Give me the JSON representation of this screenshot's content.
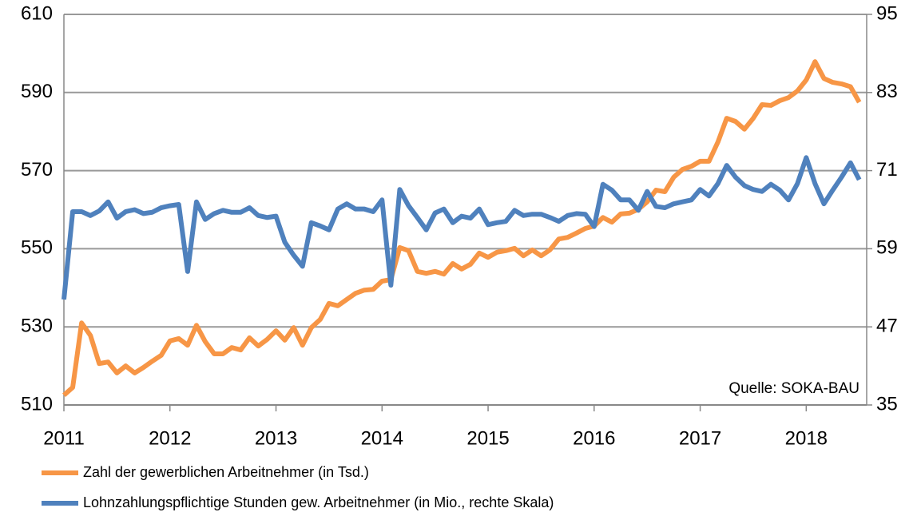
{
  "chart_data": {
    "type": "line",
    "x": [
      2011,
      2011.083,
      2011.167,
      2011.25,
      2011.333,
      2011.417,
      2011.5,
      2011.583,
      2011.667,
      2011.75,
      2011.833,
      2011.917,
      2012,
      2012.083,
      2012.167,
      2012.25,
      2012.333,
      2012.417,
      2012.5,
      2012.583,
      2012.667,
      2012.75,
      2012.833,
      2012.917,
      2013,
      2013.083,
      2013.167,
      2013.25,
      2013.333,
      2013.417,
      2013.5,
      2013.583,
      2013.667,
      2013.75,
      2013.833,
      2013.917,
      2014,
      2014.083,
      2014.167,
      2014.25,
      2014.333,
      2014.417,
      2014.5,
      2014.583,
      2014.667,
      2014.75,
      2014.833,
      2014.917,
      2015,
      2015.083,
      2015.167,
      2015.25,
      2015.333,
      2015.417,
      2015.5,
      2015.583,
      2015.667,
      2015.75,
      2015.833,
      2015.917,
      2016,
      2016.083,
      2016.167,
      2016.25,
      2016.333,
      2016.417,
      2016.5,
      2016.583,
      2016.667,
      2016.75,
      2016.833,
      2016.917,
      2017,
      2017.083,
      2017.167,
      2017.25,
      2017.333,
      2017.417,
      2017.5,
      2017.583,
      2017.667,
      2017.75,
      2017.833,
      2017.917,
      2018,
      2018.083,
      2018.167,
      2018.25,
      2018.333,
      2018.417,
      2018.5
    ],
    "series": [
      {
        "name": "Zahl der gewerblichen Arbeitnehmer (in Tsd.)",
        "color": "#f79646",
        "values": [
          512.5,
          514.5,
          531,
          527.8,
          520.6,
          521,
          518.2,
          520,
          518.2,
          519.6,
          521.2,
          522.7,
          526.4,
          527,
          525.3,
          530.4,
          526.2,
          523.1,
          523.1,
          524.7,
          524.1,
          527.2,
          525.1,
          526.8,
          529,
          526.6,
          529.8,
          525.3,
          529.8,
          531.9,
          536,
          535.4,
          537,
          538.6,
          539.4,
          539.6,
          541.7,
          542.1,
          550.3,
          549.5,
          544.2,
          543.7,
          544.2,
          543.5,
          546.2,
          544.8,
          546,
          548.9,
          547.8,
          549.1,
          549.5,
          550.1,
          548.2,
          549.7,
          548.2,
          549.7,
          552.5,
          552.9,
          554,
          555.2,
          555.8,
          558,
          556.8,
          558.9,
          559.1,
          560.1,
          562,
          565,
          564.6,
          568.3,
          570.3,
          571.1,
          572.4,
          572.4,
          577.3,
          583.4,
          582.6,
          580.6,
          583.4,
          586.9,
          586.7,
          587.9,
          588.7,
          590.4,
          593.2,
          597.9,
          593.6,
          592.6,
          592.2,
          591.5,
          587.5
        ]
      },
      {
        "name": "Lohnzahlungspflichtige Stunden gew. Arbeitnehmer (in Mio., rechte Skala)",
        "color": "#4f81bd",
        "axis": "y2",
        "values": [
          51.2,
          64.7,
          64.7,
          64.1,
          64.8,
          66.2,
          63.7,
          64.7,
          65,
          64.4,
          64.6,
          65.3,
          65.6,
          65.8,
          55.5,
          66.2,
          63.5,
          64.4,
          64.9,
          64.6,
          64.6,
          65.3,
          64.1,
          63.8,
          64,
          60,
          58,
          56.3,
          63,
          62.5,
          61.9,
          65.1,
          65.9,
          65.1,
          65.1,
          64.7,
          66.5,
          53.4,
          68.1,
          65.6,
          63.8,
          61.9,
          64.5,
          65.1,
          63,
          64,
          63.7,
          65.1,
          62.7,
          63,
          63.2,
          64.9,
          64.1,
          64.3,
          64.3,
          63.8,
          63.2,
          64.1,
          64.4,
          64.3,
          62.4,
          68.9,
          68,
          66.5,
          66.5,
          64.9,
          67.8,
          65.5,
          65.3,
          65.9,
          66.2,
          66.5,
          68.1,
          67.1,
          69,
          71.8,
          70,
          68.7,
          68.1,
          67.8,
          68.9,
          68,
          66.5,
          69,
          73,
          69,
          65.9,
          68,
          70,
          72.2,
          69.6
        ]
      }
    ],
    "xlim": [
      2011,
      2018.57
    ],
    "xticks": [
      2011,
      2012,
      2013,
      2014,
      2015,
      2016,
      2017,
      2018
    ],
    "ylim": [
      510,
      610
    ],
    "yticks": [
      510,
      530,
      550,
      570,
      590,
      610
    ],
    "y2lim": [
      35,
      95
    ],
    "y2ticks": [
      35,
      47,
      59,
      71,
      83,
      95
    ],
    "grid": true,
    "annotation": "Quelle: SOKA-BAU"
  }
}
